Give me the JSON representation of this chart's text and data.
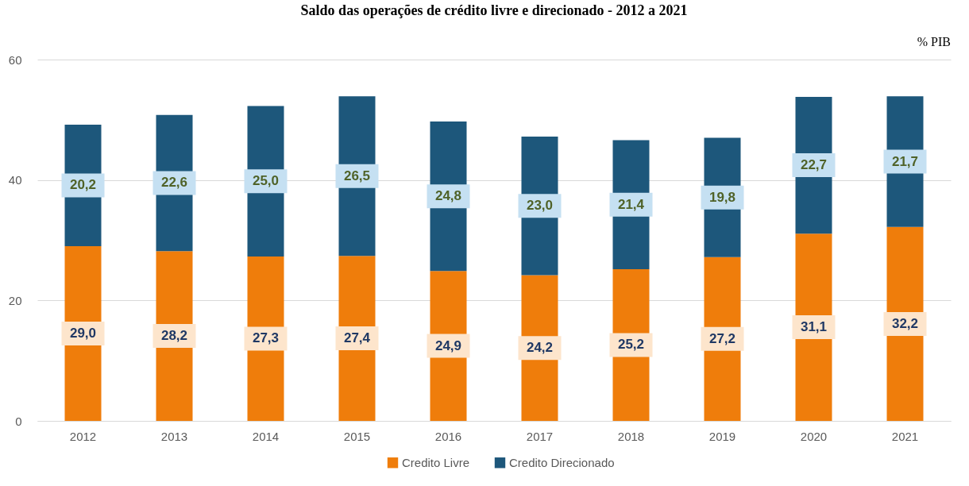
{
  "chart_data": {
    "type": "bar",
    "title": "Saldo das operações de crédito livre e direcionado - 2012 a 2021",
    "ylabel": "% PIB",
    "categories": [
      "2012",
      "2013",
      "2014",
      "2015",
      "2016",
      "2017",
      "2018",
      "2019",
      "2020",
      "2021"
    ],
    "series": [
      {
        "name": "Credito Livre",
        "color": "#ef7d0b",
        "values": [
          29.0,
          28.2,
          27.3,
          27.4,
          24.9,
          24.2,
          25.2,
          27.2,
          31.1,
          32.2
        ],
        "value_labels": [
          "29,0",
          "28,2",
          "27,3",
          "27,4",
          "24,9",
          "24,2",
          "25,2",
          "27,2",
          "31,1",
          "32,2"
        ]
      },
      {
        "name": "Credito Direcionado",
        "color": "#1d577b",
        "values": [
          20.2,
          22.6,
          25.0,
          26.5,
          24.8,
          23.0,
          21.4,
          19.8,
          22.7,
          21.7
        ],
        "value_labels": [
          "20,2",
          "22,6",
          "25,0",
          "26,5",
          "24,8",
          "23,0",
          "21,4",
          "19,8",
          "22,7",
          "21,7"
        ]
      }
    ],
    "stacked": true,
    "ylim": [
      0,
      60
    ],
    "yticks": [
      0,
      20,
      40,
      60
    ],
    "grid": "y",
    "legend": "bottom"
  }
}
